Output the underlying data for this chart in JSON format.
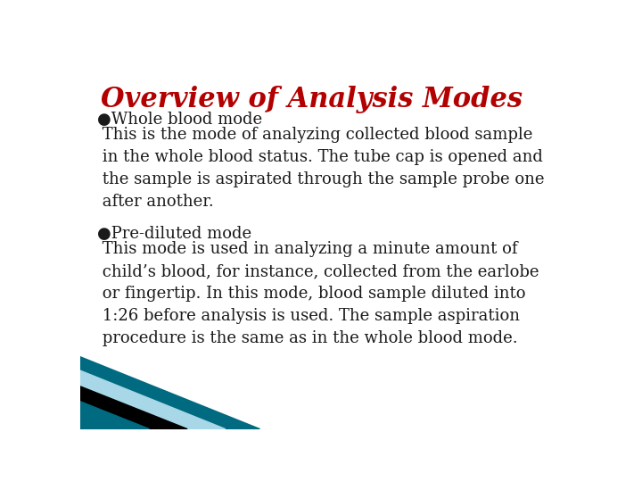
{
  "title": "Overview of Analysis Modes",
  "title_color": "#b30000",
  "title_fontsize": 22,
  "bg_color": "#ffffff",
  "text_color": "#1a1a1a",
  "body_fontsize": 13,
  "section1_bullet": "●Whole blood mode",
  "section1_body": " This is the mode of analyzing collected blood sample\n in the whole blood status. The tube cap is opened and\n the sample is aspirated through the sample probe one\n after another.",
  "section2_bullet": "●Pre-diluted mode",
  "section2_body": " This mode is used in analyzing a minute amount of\n child’s blood, for instance, collected from the earlobe\n or fingertip. In this mode, blood sample diluted into\n 1:26 before analysis is used. The sample aspiration\n procedure is the same as in the whole blood mode.",
  "corner_teal_dark": "#006a80",
  "corner_light_blue": "#a8d8e8",
  "corner_black": "#000000"
}
